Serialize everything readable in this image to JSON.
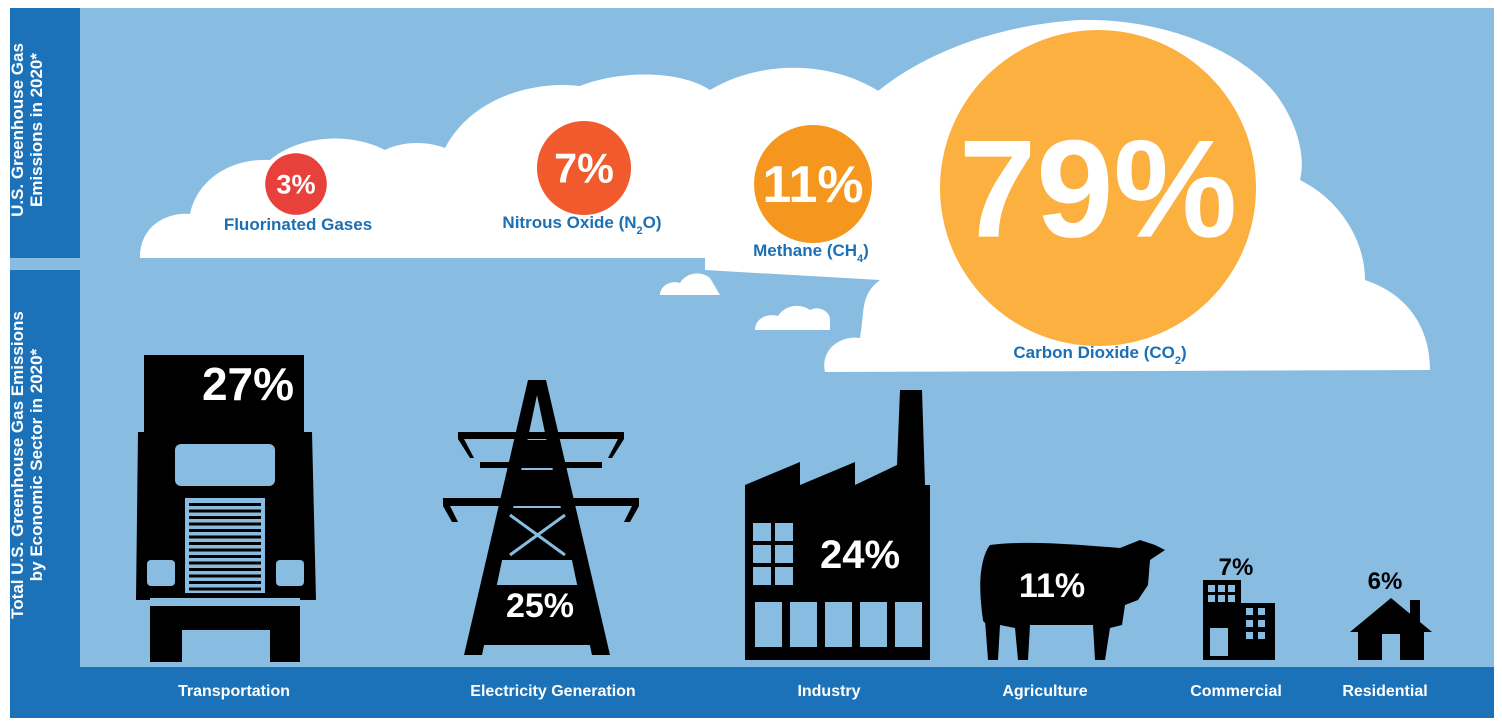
{
  "chart_data": [
    {
      "type": "bubble",
      "title": "U.S. Greenhouse Gas Emissions in 2020*",
      "categories": [
        "Fluorinated Gases",
        "Nitrous Oxide (N2O)",
        "Methane (CH4)",
        "Carbon Dioxide (CO2)"
      ],
      "values": [
        3,
        7,
        11,
        79
      ],
      "value_labels": [
        "3%",
        "7%",
        "11%",
        "79%"
      ],
      "label_parts": [
        {
          "main": "Fluorinated Gases",
          "sub": "",
          "tail": ""
        },
        {
          "main": "Nitrous Oxide (N",
          "sub": "2",
          "tail": "O)"
        },
        {
          "main": "Methane (CH",
          "sub": "4",
          "tail": ")"
        },
        {
          "main": "Carbon Dioxide (CO",
          "sub": "2",
          "tail": ")"
        }
      ],
      "colors": [
        "#e8403a",
        "#f05a2c",
        "#f5961f",
        "#fbb040"
      ]
    },
    {
      "type": "bar",
      "title": "Total U.S. Greenhouse Gas Emissions by Economic Sector in 2020*",
      "categories": [
        "Transportation",
        "Electricity Generation",
        "Industry",
        "Agriculture",
        "Commercial",
        "Residential"
      ],
      "values": [
        27,
        25,
        24,
        11,
        7,
        6
      ],
      "value_labels": [
        "27%",
        "25%",
        "24%",
        "11%",
        "7%",
        "6%"
      ],
      "icons": [
        "truck-icon",
        "transmission-tower-icon",
        "factory-icon",
        "cow-icon",
        "office-building-icon",
        "house-icon"
      ]
    }
  ],
  "colors": {
    "sky": "#88bce0",
    "sidebar": "#1b72b9",
    "cloud": "#ffffff",
    "label_blue": "#1b6fb5",
    "icon": "#000000",
    "bottom_bar": "#1b72b9"
  }
}
